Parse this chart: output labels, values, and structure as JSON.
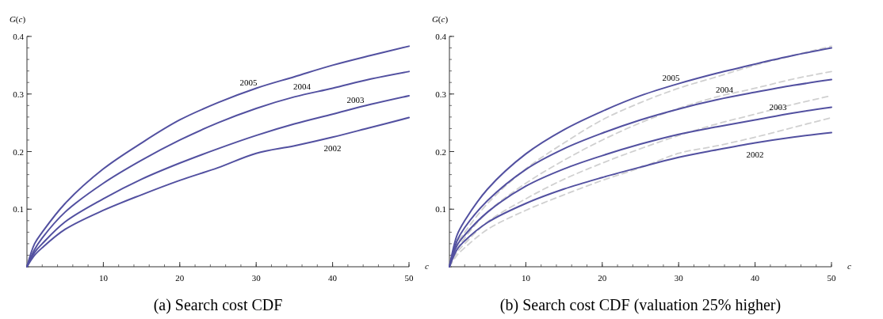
{
  "chart_data": [
    {
      "type": "line",
      "title": "(a) Search cost CDF",
      "xlabel": "c",
      "ylabel": "G(c)",
      "x": [
        0,
        1,
        2,
        5,
        10,
        15,
        20,
        25,
        30,
        35,
        40,
        45,
        50
      ],
      "xlim": [
        0,
        50
      ],
      "ylim": [
        0,
        0.4
      ],
      "xticks": [
        10,
        20,
        30,
        40,
        50
      ],
      "yticks": [
        0.1,
        0.2,
        0.3,
        0.4
      ],
      "grid": false,
      "marker": "none",
      "line_style": "solid",
      "series": [
        {
          "name": "2005",
          "color": "#5250a0",
          "values": [
            0,
            0.04,
            0.06,
            0.11,
            0.17,
            0.215,
            0.255,
            0.285,
            0.31,
            0.33,
            0.35,
            0.367,
            0.383
          ]
        },
        {
          "name": "2004",
          "color": "#5250a0",
          "values": [
            0,
            0.03,
            0.05,
            0.095,
            0.145,
            0.185,
            0.22,
            0.25,
            0.275,
            0.295,
            0.31,
            0.326,
            0.339
          ]
        },
        {
          "name": "2003",
          "color": "#5250a0",
          "values": [
            0,
            0.025,
            0.04,
            0.078,
            0.118,
            0.152,
            0.18,
            0.205,
            0.228,
            0.248,
            0.265,
            0.282,
            0.297
          ]
        },
        {
          "name": "2002",
          "color": "#5250a0",
          "values": [
            0,
            0.02,
            0.033,
            0.065,
            0.098,
            0.125,
            0.15,
            0.172,
            0.197,
            0.21,
            0.225,
            0.242,
            0.259
          ]
        }
      ]
    },
    {
      "type": "line",
      "title": "(b) Search cost CDF (valuation 25% higher)",
      "xlabel": "c",
      "ylabel": "G(c)",
      "x": [
        0,
        1,
        2,
        5,
        10,
        15,
        20,
        25,
        30,
        35,
        40,
        45,
        50
      ],
      "xlim": [
        0,
        50
      ],
      "ylim": [
        0,
        0.4
      ],
      "xticks": [
        10,
        20,
        30,
        40,
        50
      ],
      "yticks": [
        0.1,
        0.2,
        0.3,
        0.4
      ],
      "grid": false,
      "marker": "none",
      "line_style": "solid",
      "series": [
        {
          "color": "#d0d0d0",
          "line_style": "dashed",
          "values": [
            0,
            0.04,
            0.06,
            0.11,
            0.17,
            0.215,
            0.255,
            0.285,
            0.31,
            0.33,
            0.35,
            0.367,
            0.383
          ]
        },
        {
          "color": "#d0d0d0",
          "line_style": "dashed",
          "values": [
            0,
            0.03,
            0.05,
            0.095,
            0.145,
            0.185,
            0.22,
            0.25,
            0.275,
            0.295,
            0.31,
            0.326,
            0.339
          ]
        },
        {
          "color": "#d0d0d0",
          "line_style": "dashed",
          "values": [
            0,
            0.025,
            0.04,
            0.078,
            0.118,
            0.152,
            0.18,
            0.205,
            0.228,
            0.248,
            0.265,
            0.282,
            0.297
          ]
        },
        {
          "color": "#d0d0d0",
          "line_style": "dashed",
          "values": [
            0,
            0.02,
            0.033,
            0.065,
            0.098,
            0.125,
            0.15,
            0.172,
            0.197,
            0.21,
            0.225,
            0.242,
            0.259
          ]
        },
        {
          "name": "2005",
          "color": "#5250a0",
          "values": [
            0,
            0.055,
            0.08,
            0.135,
            0.196,
            0.238,
            0.27,
            0.297,
            0.318,
            0.336,
            0.352,
            0.367,
            0.38
          ]
        },
        {
          "name": "2004",
          "color": "#5250a0",
          "values": [
            0,
            0.045,
            0.068,
            0.115,
            0.169,
            0.205,
            0.232,
            0.255,
            0.274,
            0.29,
            0.303,
            0.315,
            0.325
          ]
        },
        {
          "name": "2003",
          "color": "#5250a0",
          "values": [
            0,
            0.037,
            0.055,
            0.095,
            0.14,
            0.17,
            0.193,
            0.213,
            0.23,
            0.243,
            0.255,
            0.267,
            0.277
          ]
        },
        {
          "name": "2002",
          "color": "#5250a0",
          "values": [
            0,
            0.03,
            0.045,
            0.077,
            0.11,
            0.135,
            0.155,
            0.173,
            0.19,
            0.203,
            0.215,
            0.225,
            0.233
          ]
        }
      ]
    }
  ]
}
